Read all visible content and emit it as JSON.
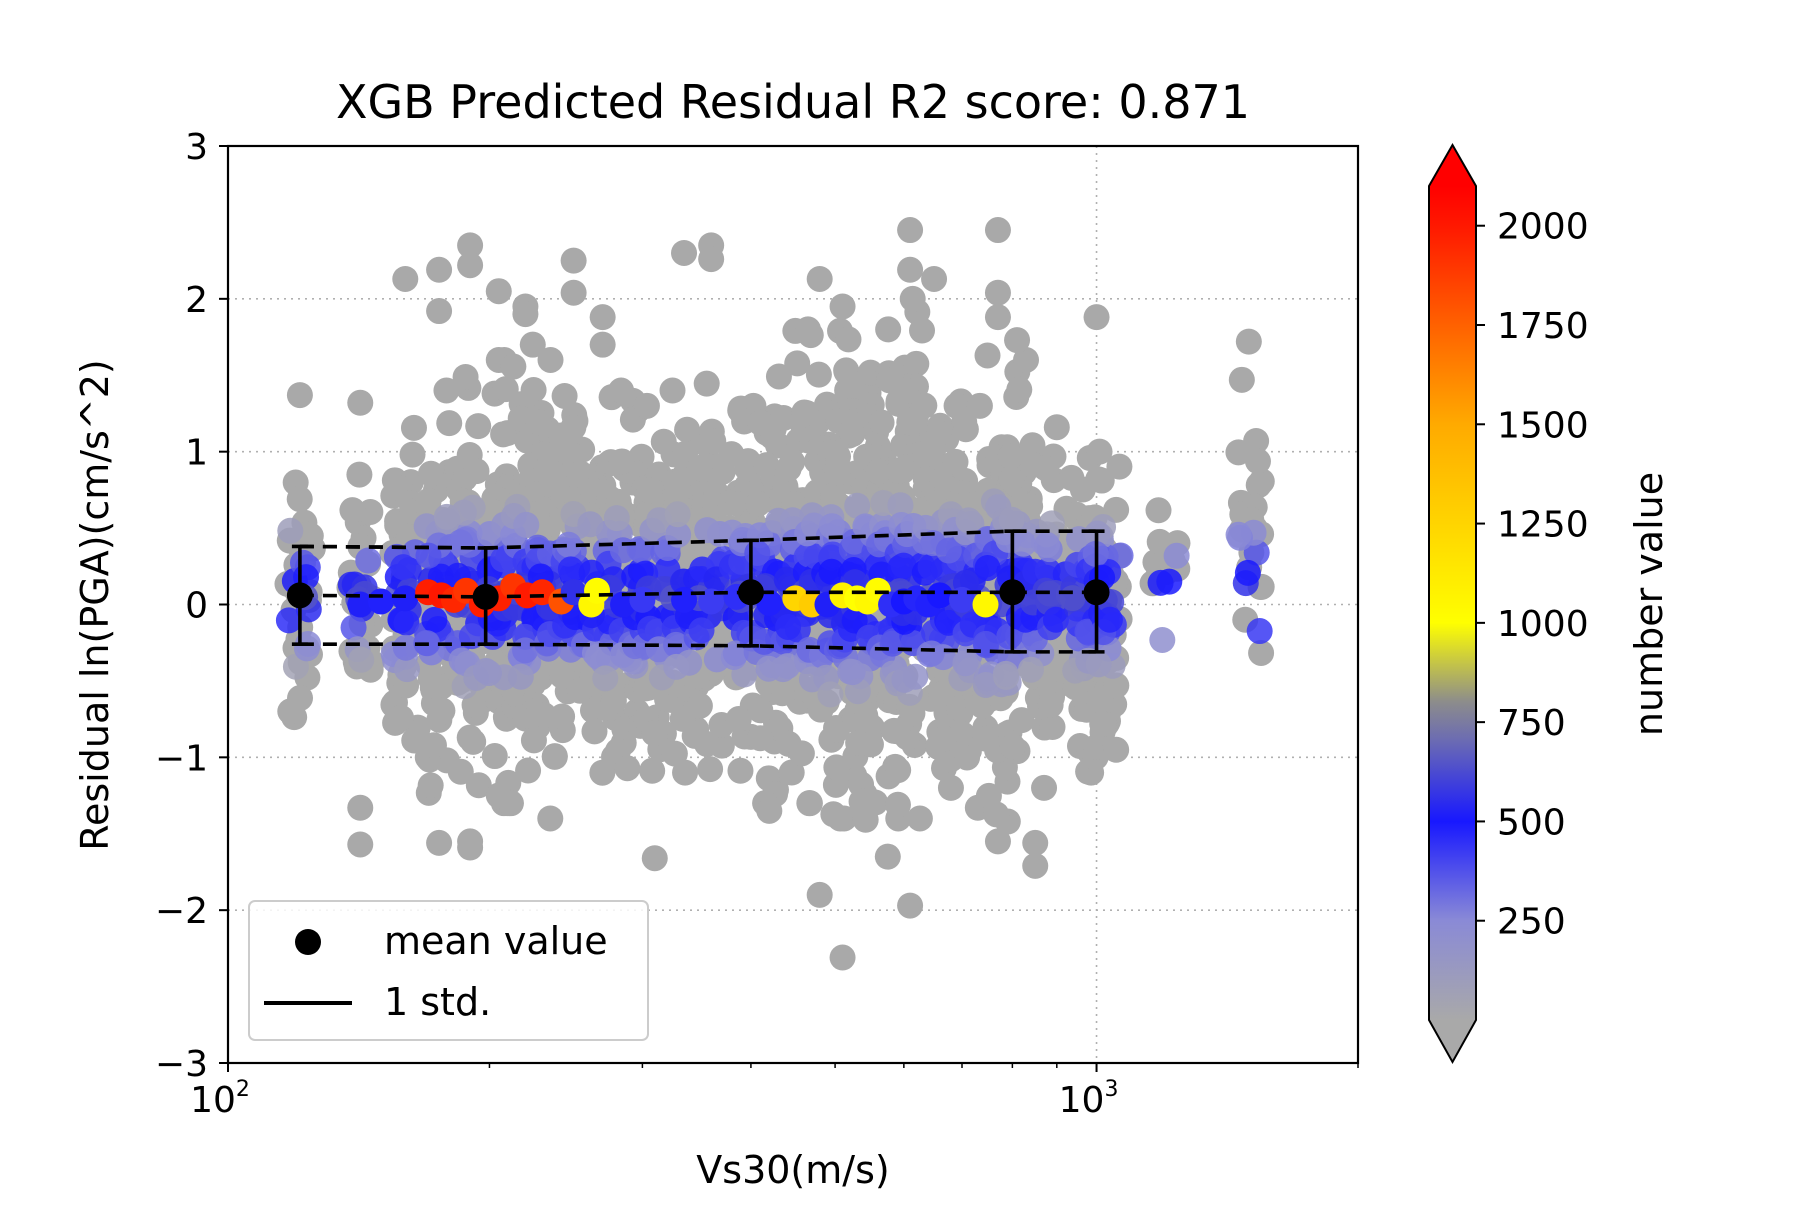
{
  "chart_data": {
    "type": "scatter",
    "title": "XGB Predicted Residual R2 score: 0.871",
    "xlabel": "Vs30(m/s)",
    "ylabel": "Residual ln(PGA)(cm/s^2)",
    "x_scale": "log",
    "xlim": [
      100,
      2000
    ],
    "ylim": [
      -3,
      3
    ],
    "x_ticks": [
      {
        "base": "10",
        "exp": "2",
        "value": 100
      },
      {
        "base": "10",
        "exp": "3",
        "value": 1000
      }
    ],
    "y_ticks": [
      {
        "label": "3",
        "value": 3
      },
      {
        "label": "2",
        "value": 2
      },
      {
        "label": "1",
        "value": 1
      },
      {
        "label": "0",
        "value": 0
      },
      {
        "label": "−1",
        "value": -1
      },
      {
        "label": "−2",
        "value": -2
      },
      {
        "label": "−3",
        "value": -3
      }
    ],
    "grid": true,
    "legend_position": "lower-left",
    "legend": {
      "mean_label": "mean value",
      "std_label": "1 std."
    },
    "colorbar": {
      "label": "number value",
      "range": [
        0,
        2100
      ],
      "extend": "both",
      "ticks": [
        {
          "label": "2000",
          "value": 2000
        },
        {
          "label": "1750",
          "value": 1750
        },
        {
          "label": "1500",
          "value": 1500
        },
        {
          "label": "1250",
          "value": 1250
        },
        {
          "label": "1000",
          "value": 1000
        },
        {
          "label": "750",
          "value": 750
        },
        {
          "label": "500",
          "value": 500
        },
        {
          "label": "250",
          "value": 250
        }
      ],
      "colormap": [
        {
          "value": 0,
          "color": "#a9a9a9"
        },
        {
          "value": 250,
          "color": "#8a8ad6"
        },
        {
          "value": 500,
          "color": "#1818ff"
        },
        {
          "value": 700,
          "color": "#6a6ab4"
        },
        {
          "value": 800,
          "color": "#8c8c8c"
        },
        {
          "value": 1000,
          "color": "#ffff00"
        },
        {
          "value": 1500,
          "color": "#ffaa00"
        },
        {
          "value": 2000,
          "color": "#ff1800"
        },
        {
          "value": 2100,
          "color": "#ff0000"
        }
      ]
    },
    "mean_series": {
      "name": "mean value",
      "x": [
        121,
        198,
        400,
        800,
        1000
      ],
      "y": [
        0.06,
        0.05,
        0.08,
        0.08,
        0.08
      ]
    },
    "std_series": {
      "name": "1 std.",
      "x": [
        121,
        198,
        400,
        800,
        1000
      ],
      "upper": [
        0.38,
        0.37,
        0.42,
        0.48,
        0.48
      ],
      "lower": [
        -0.26,
        -0.26,
        -0.27,
        -0.31,
        -0.31
      ]
    },
    "scatter_columns": [
      {
        "x": 121,
        "ymin": -1.0,
        "ymax": 1.05,
        "sd": 0.42,
        "n": 28,
        "outliers": [
          1.37
        ]
      },
      {
        "x": 142,
        "ymin": -0.75,
        "ymax": 0.85,
        "sd": 0.38,
        "n": 24,
        "outliers": [
          1.32,
          -1.33,
          -1.57
        ]
      },
      {
        "x": 160,
        "ymin": -1.2,
        "ymax": 1.3,
        "sd": 0.5,
        "n": 55,
        "outliers": [
          2.13
        ]
      },
      {
        "x": 175,
        "ymin": -1.3,
        "ymax": 1.4,
        "sd": 0.52,
        "n": 60,
        "outliers": [
          2.19,
          1.92,
          -1.56
        ]
      },
      {
        "x": 190,
        "ymin": -1.3,
        "ymax": 1.5,
        "sd": 0.55,
        "n": 70,
        "outliers": [
          2.35,
          2.22,
          -1.55,
          -1.59
        ]
      },
      {
        "x": 205,
        "ymin": -1.3,
        "ymax": 1.6,
        "sd": 0.55,
        "n": 70,
        "outliers": [
          2.05,
          1.6,
          -1.25
        ]
      },
      {
        "x": 220,
        "ymin": -1.3,
        "ymax": 1.7,
        "sd": 0.55,
        "n": 70,
        "outliers": [
          1.95,
          1.9
        ]
      },
      {
        "x": 235,
        "ymin": -1.2,
        "ymax": 1.6,
        "sd": 0.5,
        "n": 60,
        "outliers": [
          -1.4
        ]
      },
      {
        "x": 250,
        "ymin": -1.2,
        "ymax": 1.6,
        "sd": 0.5,
        "n": 55,
        "outliers": [
          2.25,
          2.04
        ]
      },
      {
        "x": 270,
        "ymin": -1.2,
        "ymax": 1.5,
        "sd": 0.5,
        "n": 55,
        "outliers": [
          1.88,
          1.7
        ]
      },
      {
        "x": 290,
        "ymin": -1.2,
        "ymax": 1.4,
        "sd": 0.5,
        "n": 55,
        "outliers": []
      },
      {
        "x": 310,
        "ymin": -1.1,
        "ymax": 1.3,
        "sd": 0.5,
        "n": 55,
        "outliers": [
          -1.66
        ]
      },
      {
        "x": 335,
        "ymin": -1.1,
        "ymax": 1.4,
        "sd": 0.5,
        "n": 55,
        "outliers": [
          2.3
        ]
      },
      {
        "x": 360,
        "ymin": -1.1,
        "ymax": 1.5,
        "sd": 0.52,
        "n": 55,
        "outliers": [
          2.35,
          2.26
        ]
      },
      {
        "x": 390,
        "ymin": -1.2,
        "ymax": 1.6,
        "sd": 0.52,
        "n": 60,
        "outliers": []
      },
      {
        "x": 420,
        "ymin": -1.3,
        "ymax": 1.7,
        "sd": 0.55,
        "n": 65,
        "outliers": [
          -1.35
        ]
      },
      {
        "x": 450,
        "ymin": -1.2,
        "ymax": 1.7,
        "sd": 0.55,
        "n": 65,
        "outliers": [
          1.79
        ]
      },
      {
        "x": 480,
        "ymin": -1.3,
        "ymax": 1.8,
        "sd": 0.57,
        "n": 70,
        "outliers": [
          2.13,
          -1.9
        ]
      },
      {
        "x": 510,
        "ymin": -1.4,
        "ymax": 2.0,
        "sd": 0.6,
        "n": 75,
        "outliers": [
          1.95,
          -2.31
        ]
      },
      {
        "x": 540,
        "ymin": -1.5,
        "ymax": 1.9,
        "sd": 0.6,
        "n": 75,
        "outliers": []
      },
      {
        "x": 575,
        "ymin": -1.5,
        "ymax": 1.8,
        "sd": 0.57,
        "n": 70,
        "outliers": [
          -1.65
        ]
      },
      {
        "x": 610,
        "ymin": -1.4,
        "ymax": 2.0,
        "sd": 0.6,
        "n": 70,
        "outliers": [
          2.45,
          2.19,
          -1.97
        ]
      },
      {
        "x": 650,
        "ymin": -1.3,
        "ymax": 1.7,
        "sd": 0.55,
        "n": 60,
        "outliers": [
          2.13
        ]
      },
      {
        "x": 690,
        "ymin": -1.2,
        "ymax": 1.5,
        "sd": 0.52,
        "n": 55,
        "outliers": [
          1.3
        ]
      },
      {
        "x": 730,
        "ymin": -1.2,
        "ymax": 1.3,
        "sd": 0.5,
        "n": 50,
        "outliers": [
          -1.33
        ]
      },
      {
        "x": 770,
        "ymin": -1.5,
        "ymax": 1.7,
        "sd": 0.6,
        "n": 65,
        "outliers": [
          2.45,
          2.04,
          1.88,
          -1.55
        ]
      },
      {
        "x": 810,
        "ymin": -1.0,
        "ymax": 1.6,
        "sd": 0.5,
        "n": 45,
        "outliers": [
          1.73
        ]
      },
      {
        "x": 850,
        "ymin": -1.2,
        "ymax": 1.2,
        "sd": 0.45,
        "n": 40,
        "outliers": [
          -1.56,
          -1.71
        ]
      },
      {
        "x": 900,
        "ymin": -1.0,
        "ymax": 1.1,
        "sd": 0.45,
        "n": 40,
        "outliers": [
          1.16
        ]
      },
      {
        "x": 960,
        "ymin": -1.1,
        "ymax": 1.05,
        "sd": 0.45,
        "n": 45,
        "outliers": []
      },
      {
        "x": 1000,
        "ymin": -1.2,
        "ymax": 1.0,
        "sd": 0.45,
        "n": 45,
        "outliers": [
          1.88
        ]
      },
      {
        "x": 1030,
        "ymin": -1.0,
        "ymax": 1.05,
        "sd": 0.45,
        "n": 35,
        "outliers": []
      },
      {
        "x": 1200,
        "ymin": -0.2,
        "ymax": 0.8,
        "sd": 0.35,
        "n": 10,
        "outliers": []
      },
      {
        "x": 1500,
        "ymin": -0.5,
        "ymax": 1.72,
        "sd": 0.55,
        "n": 20,
        "outliers": []
      }
    ],
    "dense_points": [
      {
        "x": 142,
        "y": 0.0,
        "value": 520
      },
      {
        "x": 150,
        "y": 0.02,
        "value": 480
      },
      {
        "x": 160,
        "y": 0.04,
        "value": 520
      },
      {
        "x": 170,
        "y": 0.08,
        "value": 1980
      },
      {
        "x": 176,
        "y": 0.06,
        "value": 2000
      },
      {
        "x": 182,
        "y": 0.03,
        "value": 1950
      },
      {
        "x": 188,
        "y": 0.09,
        "value": 1900
      },
      {
        "x": 196,
        "y": 0.0,
        "value": 1980
      },
      {
        "x": 205,
        "y": 0.04,
        "value": 1970
      },
      {
        "x": 213,
        "y": 0.12,
        "value": 1900
      },
      {
        "x": 221,
        "y": 0.06,
        "value": 1990
      },
      {
        "x": 230,
        "y": 0.08,
        "value": 1950
      },
      {
        "x": 242,
        "y": 0.02,
        "value": 1800
      },
      {
        "x": 250,
        "y": 0.08,
        "value": 560
      },
      {
        "x": 262,
        "y": 0.0,
        "value": 1050
      },
      {
        "x": 266,
        "y": 0.09,
        "value": 1020
      },
      {
        "x": 285,
        "y": 0.0,
        "value": 520
      },
      {
        "x": 300,
        "y": 0.03,
        "value": 430
      },
      {
        "x": 335,
        "y": 0.03,
        "value": 480
      },
      {
        "x": 360,
        "y": 0.02,
        "value": 420
      },
      {
        "x": 385,
        "y": 0.05,
        "value": 450
      },
      {
        "x": 420,
        "y": 0.01,
        "value": 480
      },
      {
        "x": 450,
        "y": 0.04,
        "value": 1250
      },
      {
        "x": 470,
        "y": 0.0,
        "value": 1300
      },
      {
        "x": 490,
        "y": 0.0,
        "value": 520
      },
      {
        "x": 510,
        "y": 0.06,
        "value": 1080
      },
      {
        "x": 530,
        "y": 0.04,
        "value": 1000
      },
      {
        "x": 545,
        "y": 0.02,
        "value": 1040
      },
      {
        "x": 560,
        "y": 0.09,
        "value": 1020
      },
      {
        "x": 580,
        "y": 0.0,
        "value": 450
      },
      {
        "x": 600,
        "y": 0.02,
        "value": 500
      },
      {
        "x": 620,
        "y": 0.04,
        "value": 470
      },
      {
        "x": 640,
        "y": 0.0,
        "value": 480
      },
      {
        "x": 660,
        "y": 0.06,
        "value": 500
      },
      {
        "x": 700,
        "y": 0.03,
        "value": 420
      },
      {
        "x": 745,
        "y": 0.0,
        "value": 1040
      }
    ]
  }
}
